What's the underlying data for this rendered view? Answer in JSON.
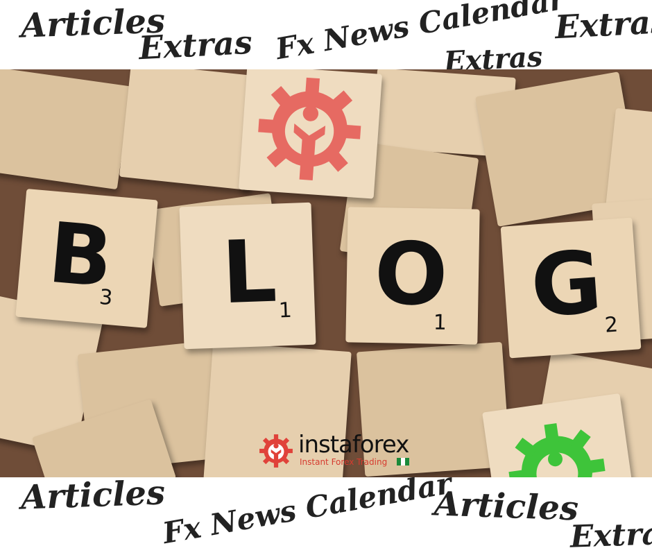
{
  "top_band": {
    "words": [
      "Articles",
      "Extras",
      "Fx News Calendar",
      "Extras",
      "Extras"
    ]
  },
  "bottom_band": {
    "words": [
      "Articles",
      "Fx News Calendar",
      "Articles",
      "Extras"
    ]
  },
  "tiles": {
    "letters": [
      "B",
      "L",
      "O",
      "G"
    ],
    "scores": [
      "3",
      "1",
      "1",
      "2"
    ]
  },
  "logo": {
    "name": "instaforex",
    "tagline": "Instant Forex Trading",
    "icon": "gear-man-icon",
    "colors": {
      "red": "#e0423a",
      "green": "#3ec43a"
    }
  }
}
